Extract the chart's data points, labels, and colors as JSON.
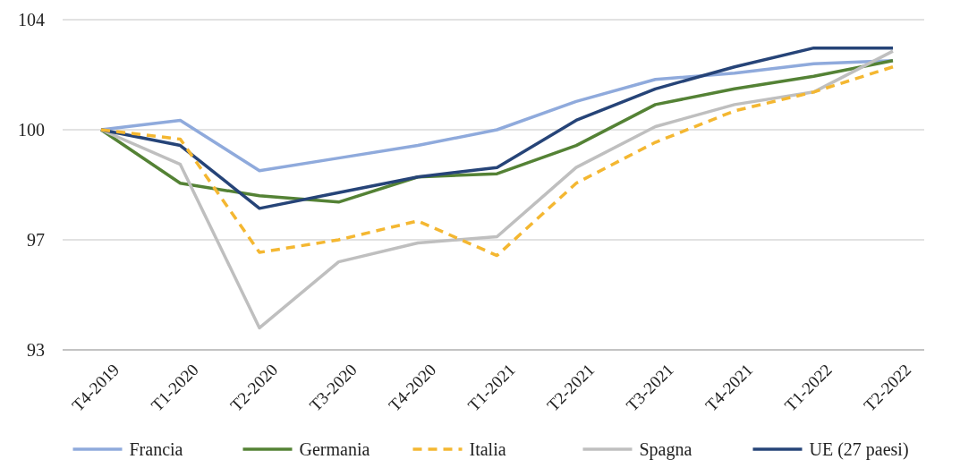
{
  "chart_data": {
    "type": "line",
    "categories": [
      "T4-2019",
      "T1-2020",
      "T2-2020",
      "T3-2020",
      "T4-2020",
      "T1-2021",
      "T2-2021",
      "T3-2021",
      "T4-2021",
      "T1-2022",
      "T2-2022"
    ],
    "series": [
      {
        "name": "Francia",
        "color": "#8faadc",
        "values": [
          100,
          100.3,
          98.7,
          99.1,
          99.5,
          100,
          100.9,
          101.6,
          101.8,
          102.1,
          102.2
        ]
      },
      {
        "name": "Germania",
        "color": "#548235",
        "values": [
          100,
          98.3,
          97.9,
          97.7,
          98.5,
          98.6,
          99.5,
          100.8,
          101.3,
          101.7,
          102.2
        ]
      },
      {
        "name": "Italia",
        "color": "#f4b731",
        "line_style": "dashed",
        "values": [
          100,
          99.7,
          96.1,
          96.5,
          97.1,
          96.0,
          98.3,
          99.6,
          100.6,
          101.2,
          102.0
        ]
      },
      {
        "name": "Spagna",
        "color": "#bfbfbf",
        "values": [
          100,
          98.9,
          93.7,
          95.8,
          96.4,
          96.6,
          98.8,
          100.1,
          100.8,
          101.2,
          102.5
        ]
      },
      {
        "name": "UE (27 paesi)",
        "color": "#264478",
        "values": [
          100,
          99.5,
          97.5,
          98.0,
          98.5,
          98.8,
          100.3,
          101.3,
          102.0,
          102.6,
          102.6
        ]
      }
    ],
    "ylim": [
      93,
      103.5
    ],
    "yticks": [
      93,
      {
        "value": 96.5,
        "label": "97"
      },
      100,
      {
        "value": 103.5,
        "label": "104"
      }
    ],
    "grid": "y",
    "legend": "bottom",
    "line_style": "solid",
    "marker": "none"
  }
}
